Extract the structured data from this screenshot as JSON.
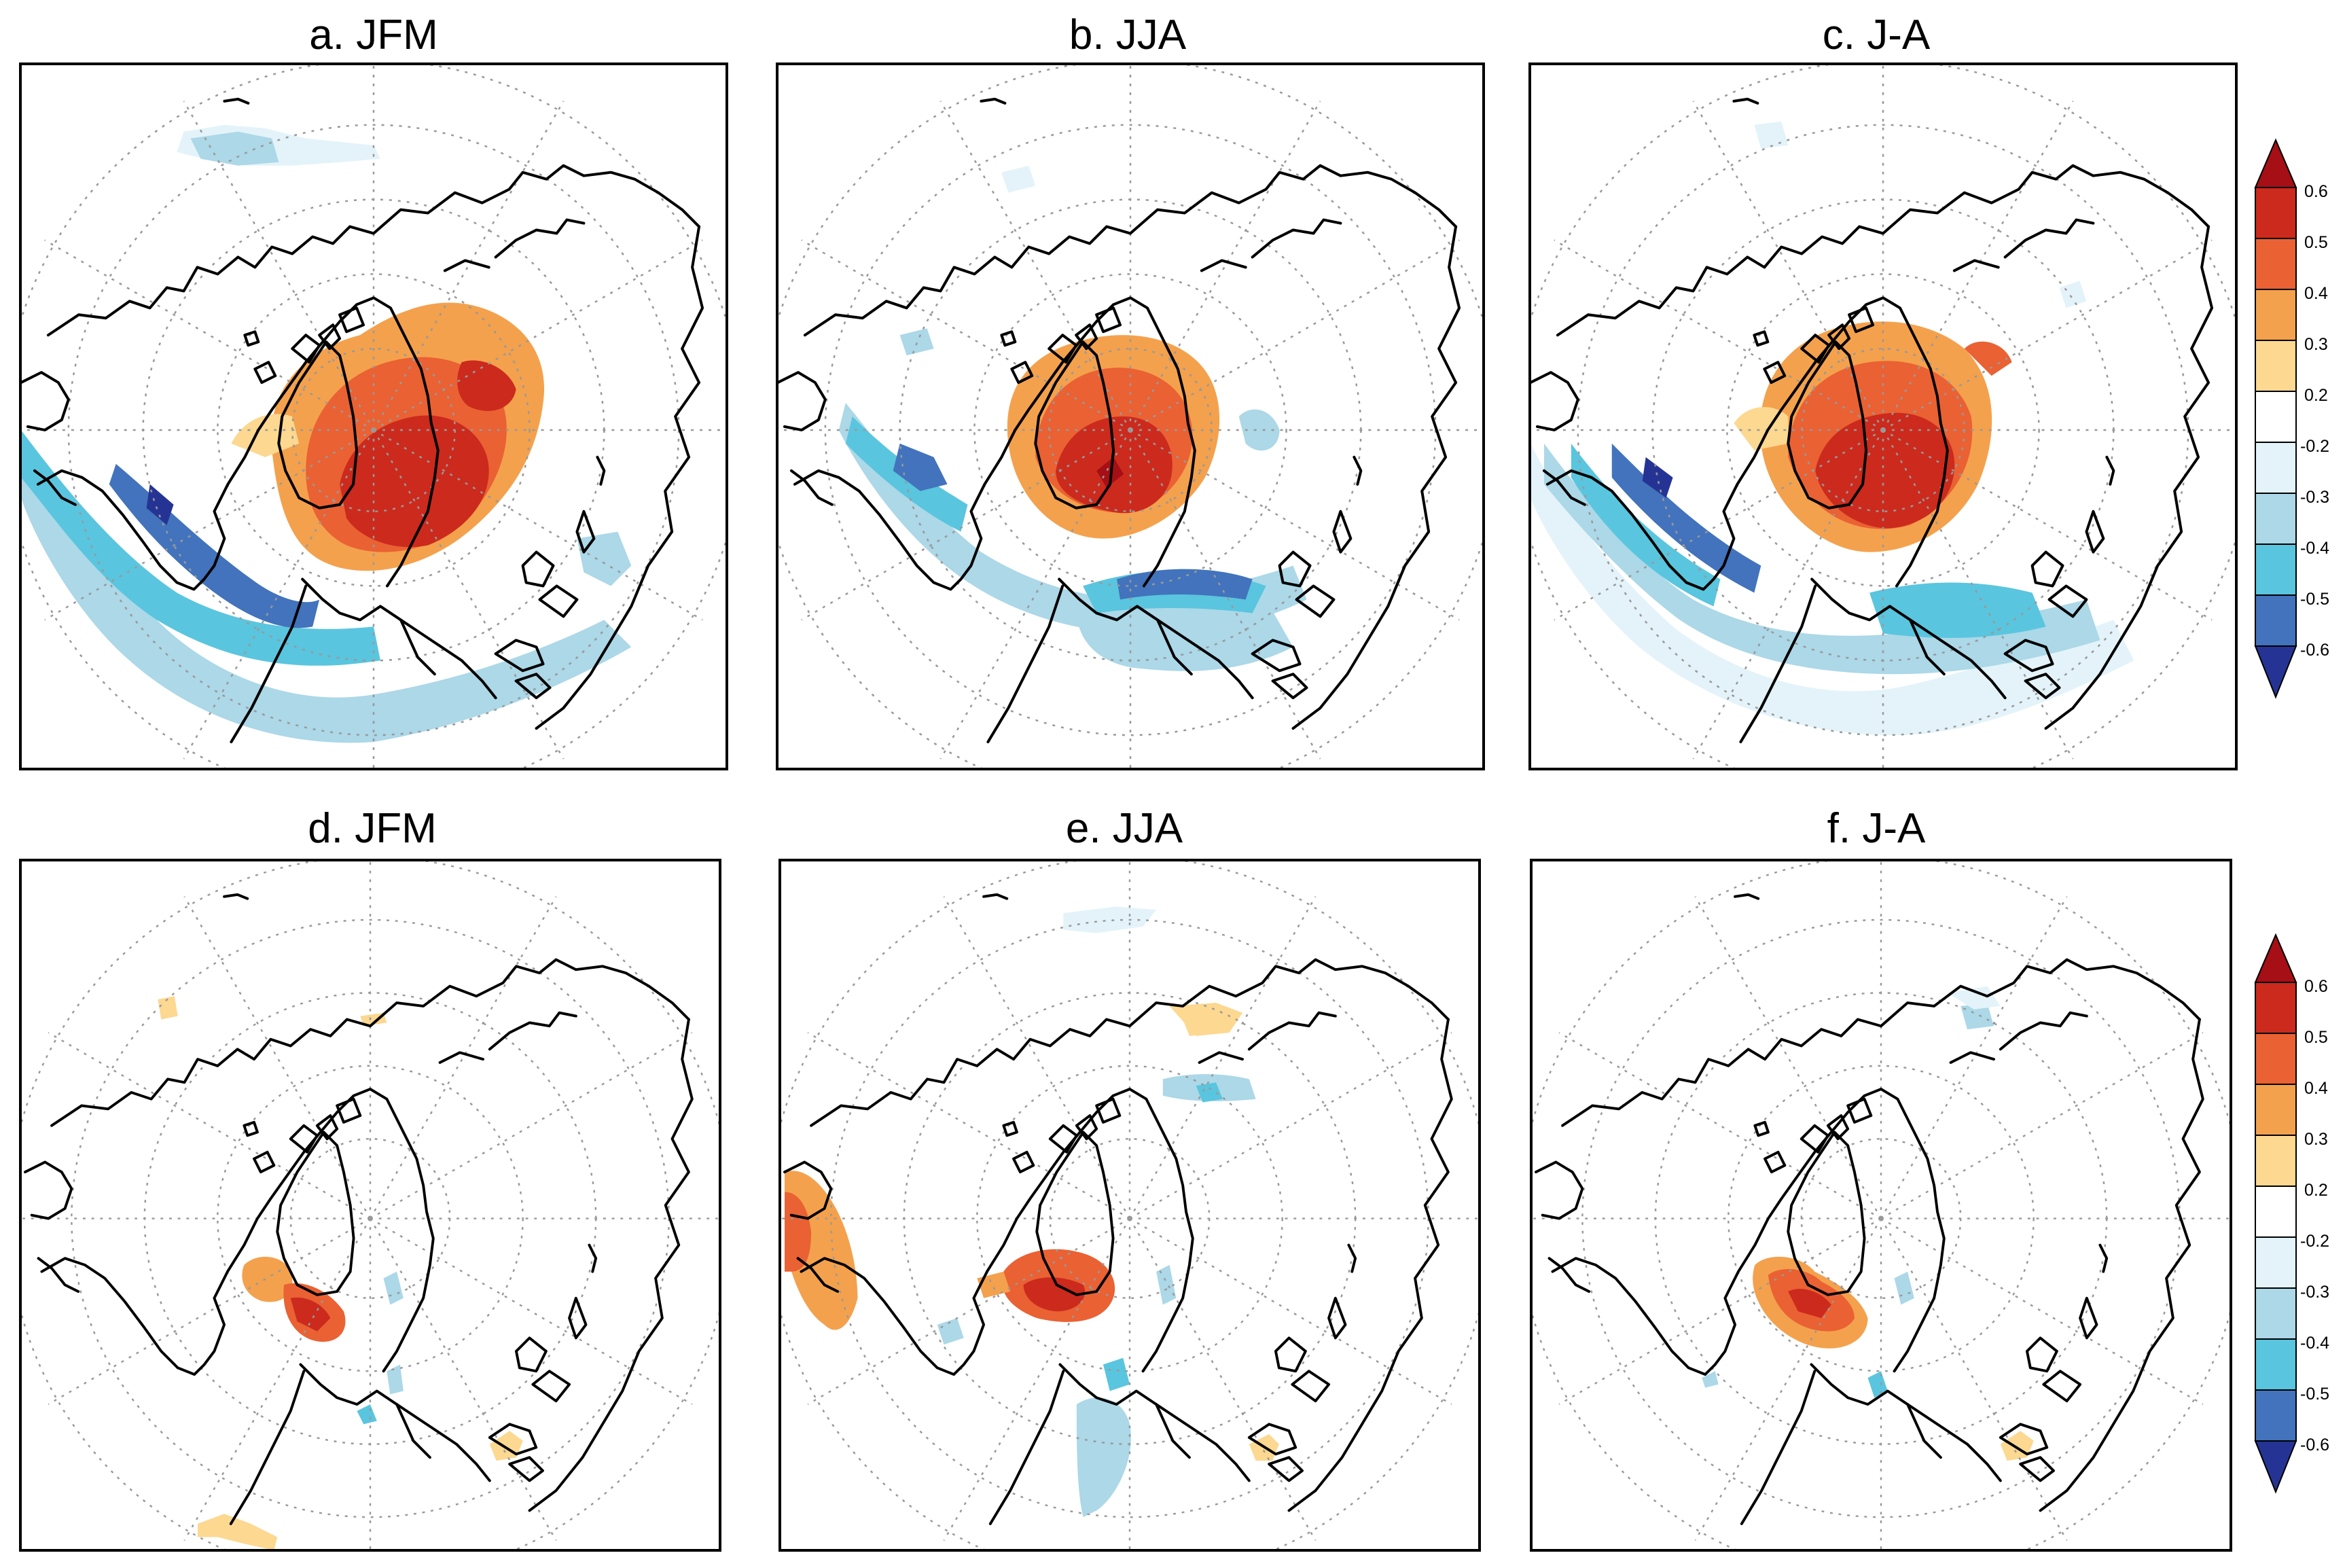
{
  "figure": {
    "panels": [
      {
        "id": "a",
        "title": "a. JFM",
        "row": 0,
        "col": 0
      },
      {
        "id": "b",
        "title": "b. JJA",
        "row": 0,
        "col": 1
      },
      {
        "id": "c",
        "title": "c. J-A",
        "row": 0,
        "col": 2
      },
      {
        "id": "d",
        "title": "d. JFM",
        "row": 1,
        "col": 0
      },
      {
        "id": "e",
        "title": "e. JJA",
        "row": 1,
        "col": 1
      },
      {
        "id": "f",
        "title": "f. J-A",
        "row": 1,
        "col": 2
      }
    ],
    "colorbars": [
      {
        "id": "top",
        "labels": [
          "0.6",
          "0.5",
          "0.4",
          "0.3",
          "0.2",
          "-0.2",
          "-0.3",
          "-0.4",
          "-0.5",
          "-0.6"
        ]
      },
      {
        "id": "bottom",
        "labels": [
          "0.6",
          "0.5",
          "0.4",
          "0.3",
          "0.2",
          "-0.2",
          "-0.3",
          "-0.4",
          "-0.5",
          "-0.6"
        ]
      }
    ],
    "colors": {
      "pos_over": "#a50f15",
      "pos_0_5_0_6": "#cb2a1d",
      "pos_0_4_0_5": "#ea6133",
      "pos_0_3_0_4": "#f4a14d",
      "pos_0_2_0_3": "#fcd890",
      "neutral": "#ffffff",
      "neg_0_2_0_3": "#e3f3f9",
      "neg_0_3_0_4": "#acd8e8",
      "neg_0_4_0_5": "#5ac5de",
      "neg_0_5_0_6": "#4273bc",
      "neg_over": "#253494",
      "coast": "#000000",
      "grid": "#999999"
    }
  }
}
